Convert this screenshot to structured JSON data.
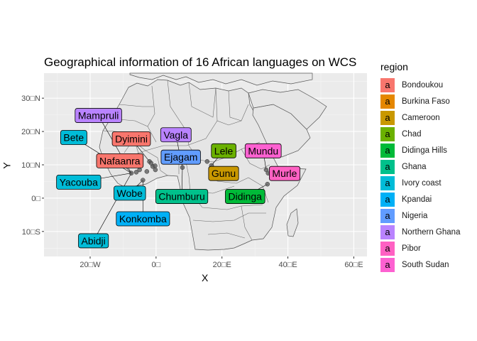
{
  "chart_data": {
    "type": "scatter",
    "title": "Geographical information of 16 African languages on WCS",
    "xlabel": "X",
    "ylabel": "Y",
    "xlim": [
      -34,
      64
    ],
    "ylim": [
      -17.5,
      37.5
    ],
    "x_ticks": [
      -20,
      0,
      20,
      40,
      60
    ],
    "x_tick_labels": [
      "20□W",
      "0□",
      "20□E",
      "40□E",
      "60□E"
    ],
    "y_ticks": [
      -10,
      0,
      10,
      20,
      30
    ],
    "y_tick_labels": [
      "10□S",
      "0□",
      "10□N",
      "20□N",
      "30□N"
    ],
    "grid": true,
    "legend_title": "region",
    "legend_position": "right",
    "legend_key_glyph": "a",
    "regions": [
      {
        "name": "Bondoukou",
        "color": "#F8766D"
      },
      {
        "name": "Burkina Faso",
        "color": "#E58700"
      },
      {
        "name": "Cameroon",
        "color": "#C99800"
      },
      {
        "name": "Chad",
        "color": "#6BB100"
      },
      {
        "name": "Didinga Hills",
        "color": "#00BA38"
      },
      {
        "name": "Ghana",
        "color": "#00C08B"
      },
      {
        "name": "Ivory coast",
        "color": "#00BCD8"
      },
      {
        "name": "Kpandai",
        "color": "#00B0F6"
      },
      {
        "name": "Nigeria",
        "color": "#619CFF"
      },
      {
        "name": "Northern Ghana",
        "color": "#B983FF"
      },
      {
        "name": "Pibor",
        "color": "#FF61C3"
      },
      {
        "name": "South Sudan",
        "color": "#FD61D1"
      }
    ],
    "points": [
      {
        "lon": -2.8,
        "lat": 8.0
      },
      {
        "lon": -2.0,
        "lat": 11.0
      },
      {
        "lon": -1.0,
        "lat": 9.5
      },
      {
        "lon": -1.5,
        "lat": 10.5
      },
      {
        "lon": -7.5,
        "lat": 7.5
      },
      {
        "lon": -6.0,
        "lat": 7.8
      },
      {
        "lon": -4.0,
        "lat": 5.4
      },
      {
        "lon": -5.0,
        "lat": 8.5
      },
      {
        "lon": -0.2,
        "lat": 8.5
      },
      {
        "lon": -0.3,
        "lat": 9.7
      },
      {
        "lon": 8.0,
        "lat": 9.2
      },
      {
        "lon": 15.5,
        "lat": 11.0
      },
      {
        "lon": 16.8,
        "lat": 9.8
      },
      {
        "lon": 33.4,
        "lat": 8.5
      },
      {
        "lon": 34.0,
        "lat": 7.5
      },
      {
        "lon": 33.8,
        "lat": 4.2
      }
    ],
    "labels": [
      {
        "text": "Mampruli",
        "region": "Northern Ghana",
        "lon": -17.5,
        "lat": 24.8
      },
      {
        "text": "Bete",
        "region": "Ivory coast",
        "lon": -25.0,
        "lat": 18.2
      },
      {
        "text": "Dyimini",
        "region": "Bondoukou",
        "lon": -7.5,
        "lat": 17.8
      },
      {
        "text": "Vagla",
        "region": "Northern Ghana",
        "lon": 6.0,
        "lat": 19.0
      },
      {
        "text": "Lele",
        "region": "Chad",
        "lon": 20.5,
        "lat": 14.2
      },
      {
        "text": "Mundu",
        "region": "South Sudan",
        "lon": 32.5,
        "lat": 14.2
      },
      {
        "text": "Nafaanra",
        "region": "Bondoukou",
        "lon": -11.0,
        "lat": 11.2
      },
      {
        "text": "Ejagam",
        "region": "Nigeria",
        "lon": 7.5,
        "lat": 12.3
      },
      {
        "text": "Gunu",
        "region": "Cameroon",
        "lon": 20.5,
        "lat": 7.4
      },
      {
        "text": "Murle",
        "region": "Pibor",
        "lon": 39.0,
        "lat": 7.4
      },
      {
        "text": "Yacouba",
        "region": "Ivory coast",
        "lon": -23.5,
        "lat": 4.8
      },
      {
        "text": "Wobe",
        "region": "Ivory coast",
        "lon": -8.0,
        "lat": 1.5
      },
      {
        "text": "Chumburu",
        "region": "Ghana",
        "lon": 7.8,
        "lat": 0.5
      },
      {
        "text": "Didinga",
        "region": "Didinga Hills",
        "lon": 27.0,
        "lat": 0.5
      },
      {
        "text": "Konkomba",
        "region": "Kpandai",
        "lon": -4.0,
        "lat": -6.2
      },
      {
        "text": "Abidji",
        "region": "Ivory coast",
        "lon": -19.0,
        "lat": -12.8
      }
    ]
  }
}
